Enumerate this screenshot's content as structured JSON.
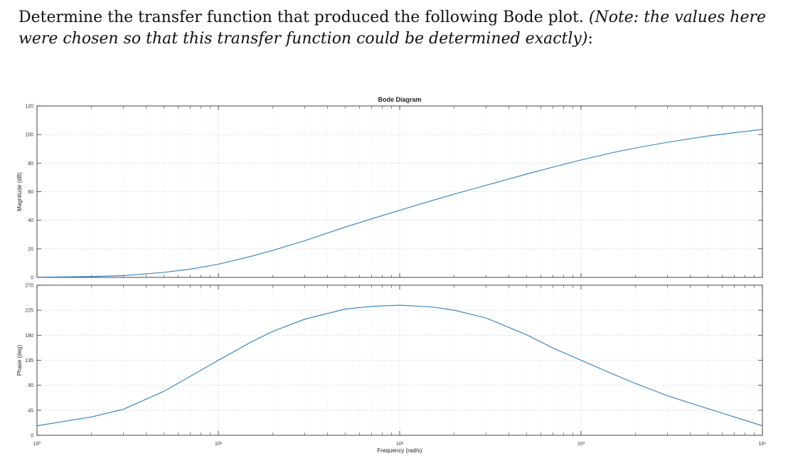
{
  "question": {
    "text_lead": "Determine the transfer function that produced the following Bode plot.",
    "text_note": "(Note: the values here were chosen so that this transfer function could be determined exactly)",
    "text_tail": ":"
  },
  "chart_data": [
    {
      "type": "line",
      "title": "Bode Diagram",
      "xlabel": "",
      "ylabel": "Magnitude (dB)",
      "xscale": "log",
      "xlim": [
        1,
        10000
      ],
      "ylim": [
        0,
        120
      ],
      "yticks": [
        0,
        20,
        40,
        60,
        80,
        100,
        120
      ],
      "grid": true,
      "series": [
        {
          "x": [
            1,
            2,
            3,
            5,
            7,
            10,
            15,
            20,
            30,
            50,
            70,
            100,
            150,
            200,
            300,
            500,
            700,
            1000,
            1500,
            2000,
            3000,
            5000,
            7000,
            10000
          ],
          "y": [
            0.1,
            0.6,
            1.3,
            3.5,
            5.8,
            9.2,
            14.6,
            18.9,
            25.7,
            35.2,
            41.0,
            47.0,
            53.7,
            58.3,
            64.5,
            72.3,
            77.2,
            82.2,
            87.4,
            90.6,
            94.6,
            99.0,
            101.3,
            103.5
          ]
        }
      ]
    },
    {
      "type": "line",
      "title": "",
      "xlabel": "Frequency (rad/s)",
      "ylabel": "Phase (deg)",
      "xscale": "log",
      "xlim": [
        1,
        10000
      ],
      "xticks": [
        "10⁰",
        "10¹",
        "10²",
        "10³",
        "10⁴"
      ],
      "ylim": [
        0,
        270
      ],
      "yticks": [
        0,
        45,
        90,
        135,
        180,
        225,
        270
      ],
      "grid": true,
      "series": [
        {
          "x": [
            1,
            2,
            3,
            5,
            7,
            10,
            15,
            20,
            30,
            50,
            70,
            100,
            150,
            200,
            300,
            500,
            700,
            1000,
            1500,
            2000,
            3000,
            5000,
            7000,
            10000
          ],
          "y": [
            17,
            33,
            47,
            79,
            106,
            135,
            167,
            187,
            209,
            227,
            232,
            234,
            231,
            225,
            211,
            181,
            157,
            135,
            110,
            93,
            71,
            48,
            33,
            17
          ]
        }
      ]
    }
  ]
}
